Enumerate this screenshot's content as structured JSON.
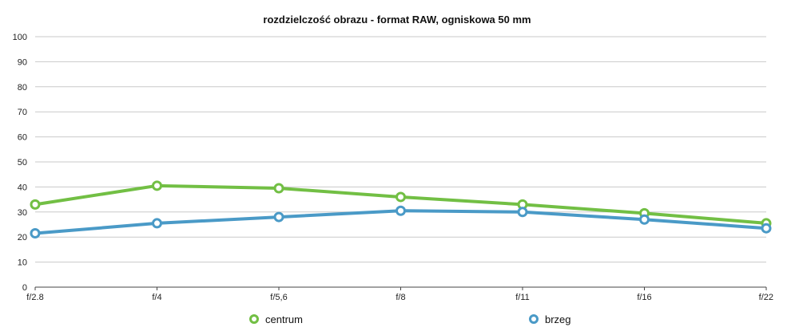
{
  "chart_data": {
    "type": "line",
    "title": "rozdzielczość obrazu - format RAW, ogniskowa 50 mm",
    "xlabel": "",
    "ylabel": "",
    "categories": [
      "f/2.8",
      "f/4",
      "f/5,6",
      "f/8",
      "f/11",
      "f/16",
      "f/22"
    ],
    "ylim": [
      0,
      100
    ],
    "yticks": [
      0,
      10,
      20,
      30,
      40,
      50,
      60,
      70,
      80,
      90,
      100
    ],
    "grid": true,
    "legend_position": "bottom",
    "series": [
      {
        "name": "centrum",
        "color": "#72bf44",
        "values": [
          33,
          40.5,
          39.5,
          36,
          33,
          29.5,
          25.5
        ]
      },
      {
        "name": "brzeg",
        "color": "#4a9ac7",
        "values": [
          21.5,
          25.5,
          28,
          30.5,
          30,
          27,
          23.5
        ]
      }
    ]
  }
}
